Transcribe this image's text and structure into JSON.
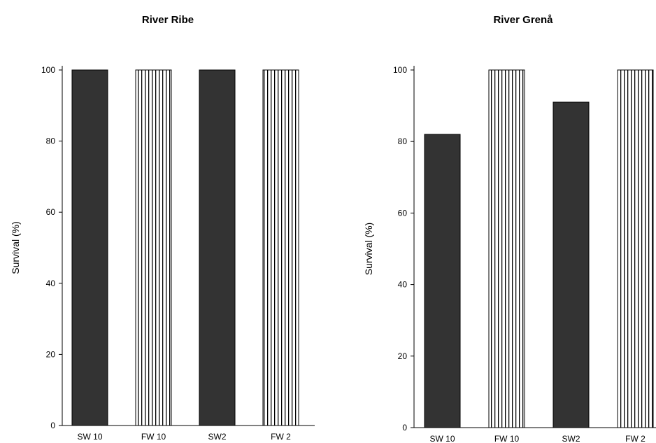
{
  "chart_data": [
    {
      "type": "bar",
      "title": "River Ribe",
      "ylabel": "Survival (%)",
      "xlabel": "",
      "ylim": [
        0,
        100
      ],
      "yticks": [
        0,
        20,
        40,
        60,
        80,
        100
      ],
      "categories": [
        "SW 10",
        "FW 10",
        "SW2",
        "FW 2"
      ],
      "values": [
        100,
        100,
        100,
        100
      ],
      "fills": [
        "solid",
        "striped",
        "solid",
        "striped"
      ],
      "colors": {
        "solid": "#333333",
        "stripe": "#000000",
        "background": "#ffffff"
      },
      "grid": false,
      "legend": "none"
    },
    {
      "type": "bar",
      "title": "River Grenå",
      "ylabel": "Survival (%)",
      "xlabel": "",
      "ylim": [
        0,
        100
      ],
      "yticks": [
        0,
        20,
        40,
        60,
        80,
        100
      ],
      "categories": [
        "SW 10",
        "FW 10",
        "SW2",
        "FW 2"
      ],
      "values": [
        82,
        100,
        91,
        100
      ],
      "fills": [
        "solid",
        "striped",
        "solid",
        "striped"
      ],
      "colors": {
        "solid": "#333333",
        "stripe": "#000000",
        "background": "#ffffff"
      },
      "grid": false,
      "legend": "none"
    }
  ]
}
